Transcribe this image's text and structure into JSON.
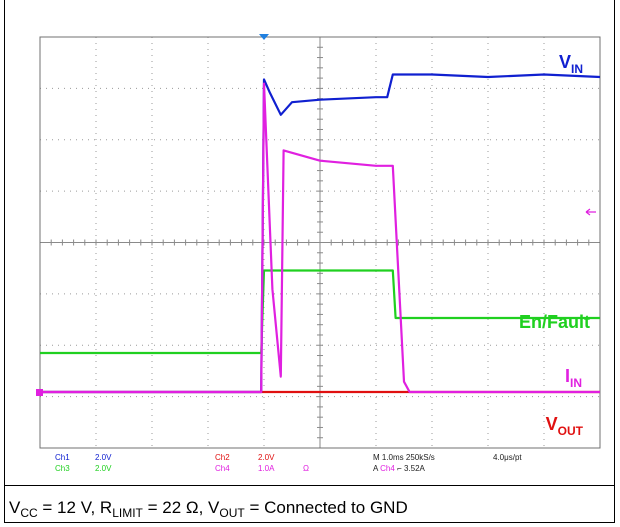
{
  "chart_data": {
    "type": "line",
    "title": "",
    "x_unit": "ms",
    "x_range": [
      -4.0,
      6.0
    ],
    "grid": true,
    "timebase": "1.0ms",
    "series": [
      {
        "name": "V_IN",
        "channel": "Ch1",
        "color": "#1020d0",
        "scale": "2.0V",
        "x": [
          -4.0,
          -0.05,
          0.0,
          0.1,
          0.3,
          0.5,
          1.0,
          2.0,
          2.2,
          2.3,
          3.0,
          4.0,
          5.0,
          6.0
        ],
        "y": [
          0.0,
          0.0,
          12.4,
          11.9,
          11.0,
          11.5,
          11.6,
          11.7,
          11.7,
          12.6,
          12.6,
          12.5,
          12.6,
          12.5
        ]
      },
      {
        "name": "I_IN",
        "channel": "Ch4",
        "color": "#e020e0",
        "scale": "1.0A",
        "x": [
          -4.0,
          -0.05,
          0.0,
          0.15,
          0.3,
          0.35,
          1.0,
          2.0,
          2.3,
          2.5,
          2.6,
          3.5,
          6.0
        ],
        "y": [
          0.0,
          0.0,
          6.0,
          2.0,
          0.3,
          4.7,
          4.5,
          4.4,
          4.4,
          0.2,
          0.0,
          0.0,
          0.0
        ]
      },
      {
        "name": "En/Fault",
        "channel": "Ch3",
        "color": "#20d020",
        "scale": "2.0V",
        "x": [
          -4.0,
          -0.05,
          0.0,
          0.5,
          1.5,
          2.3,
          2.35,
          3.0,
          4.0,
          5.0,
          6.0
        ],
        "y": [
          -0.6,
          -0.6,
          2.7,
          2.7,
          2.7,
          2.7,
          0.8,
          0.8,
          0.8,
          0.8,
          0.8
        ]
      },
      {
        "name": "V_OUT",
        "channel": "Ch2",
        "color": "#e01010",
        "scale": "2.0V",
        "x": [
          -4.0,
          6.0
        ],
        "y": [
          0.0,
          0.0
        ]
      }
    ],
    "trace_labels": [
      {
        "text": "V",
        "sub": "IN",
        "color": "#1020d0"
      },
      {
        "text": "En/Fault",
        "sub": "",
        "color": "#20d020"
      },
      {
        "text": "I",
        "sub": "IN",
        "color": "#e020e0"
      },
      {
        "text": "V",
        "sub": "OUT",
        "color": "#e01010"
      }
    ]
  },
  "status": {
    "ch1_name": "Ch1",
    "ch1_scale": "2.0V",
    "ch2_name": "Ch2",
    "ch2_scale": "2.0V",
    "ch3_name": "Ch3",
    "ch3_scale": "2.0V",
    "ch4_name": "Ch4",
    "ch4_scale": "1.0A",
    "ch4_unit": "Ω",
    "timebase": "M 1.0ms 250kS/s",
    "resolution": "4.0μs/pt",
    "trigger_prefix": "A",
    "trigger_channel": "Ch4",
    "trigger_symbol": "⌐",
    "trigger_level": "3.52A"
  },
  "caption": {
    "vcc_sym": "V",
    "vcc_sub": "CC",
    "vcc_val": " = 12 V, ",
    "r_sym": "R",
    "r_sub": "LIMIT",
    "r_val": " = 22 Ω, ",
    "vout_sym": "V",
    "vout_sub": "OUT",
    "vout_val": " = Connected to GND"
  }
}
